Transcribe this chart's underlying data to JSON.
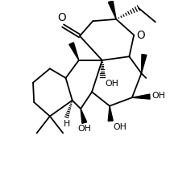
{
  "background": "#ffffff",
  "line_color": "#000000",
  "lw": 1.3,
  "figsize": [
    2.42,
    2.1
  ],
  "dpi": 100,
  "xlim": [
    0.2,
    9.8
  ],
  "ylim": [
    1.2,
    10.2
  ]
}
